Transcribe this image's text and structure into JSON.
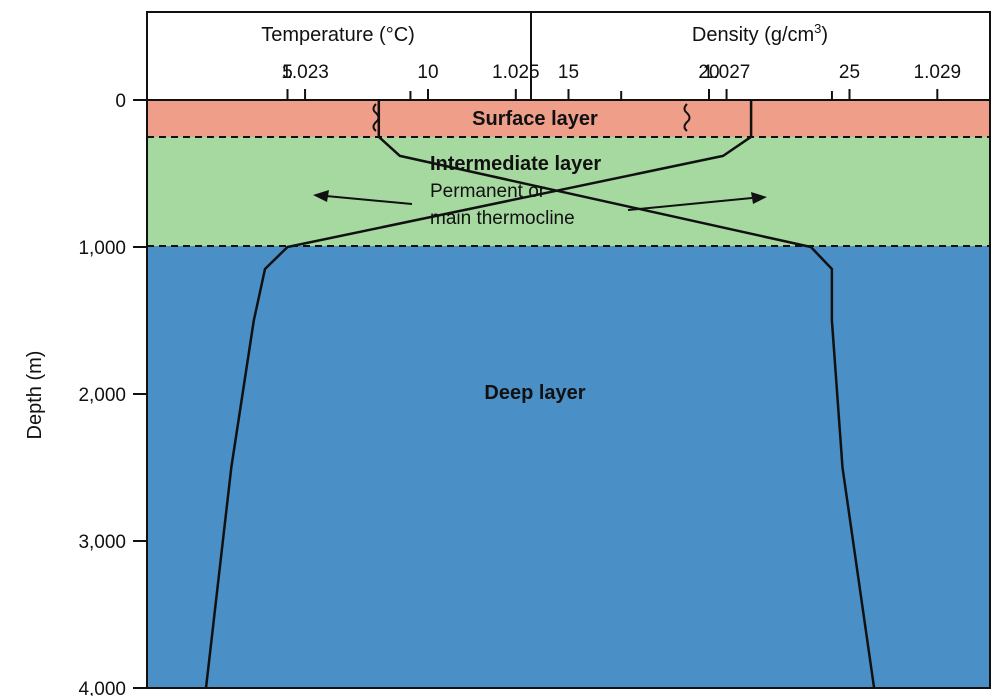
{
  "chart_data": {
    "type": "line",
    "top_axes": [
      {
        "title": "Temperature (°C)",
        "ticks": [
          5,
          10,
          15,
          20,
          25
        ],
        "range": [
          0,
          30
        ]
      },
      {
        "title_prefix": "Density (g/cm",
        "title_sup": "3",
        "title_suffix": ")",
        "ticks": [
          "1.023",
          "1.025",
          "1.027",
          "1.029"
        ],
        "range": [
          1.0215,
          1.0295
        ]
      }
    ],
    "y_axis": {
      "title": "Depth (m)",
      "ticks": [
        "0",
        "1,000",
        "2,000",
        "3,000",
        "4,000"
      ],
      "range": [
        0,
        4000
      ],
      "inverted": true
    },
    "layers": [
      {
        "name": "Surface layer",
        "depth_range": [
          0,
          250
        ],
        "color": "#ef9e8a"
      },
      {
        "name": "Intermediate layer",
        "sublabel_line1": "Permanent or",
        "sublabel_line2": "main thermocline",
        "depth_range": [
          250,
          1000
        ],
        "color": "#a6d9a0"
      },
      {
        "name": "Deep layer",
        "depth_range": [
          1000,
          4000
        ],
        "color": "#4a8fc6"
      }
    ],
    "series": [
      {
        "axis": "temperature",
        "points": [
          [
            21.5,
            0
          ],
          [
            21.5,
            250
          ],
          [
            20.5,
            380
          ],
          [
            5.0,
            1000
          ],
          [
            4.2,
            1150
          ],
          [
            3.8,
            1500
          ],
          [
            3.0,
            2500
          ],
          [
            2.1,
            4000
          ]
        ]
      },
      {
        "axis": "density",
        "points": [
          [
            1.0237,
            0
          ],
          [
            1.0237,
            250
          ],
          [
            1.0239,
            380
          ],
          [
            1.0278,
            1000
          ],
          [
            1.028,
            1150
          ],
          [
            1.028,
            1500
          ],
          [
            1.0281,
            2500
          ],
          [
            1.0284,
            4000
          ]
        ]
      }
    ],
    "grid": false,
    "legend": "none",
    "colors": {
      "line": "#111111",
      "frame": "#111111"
    }
  }
}
